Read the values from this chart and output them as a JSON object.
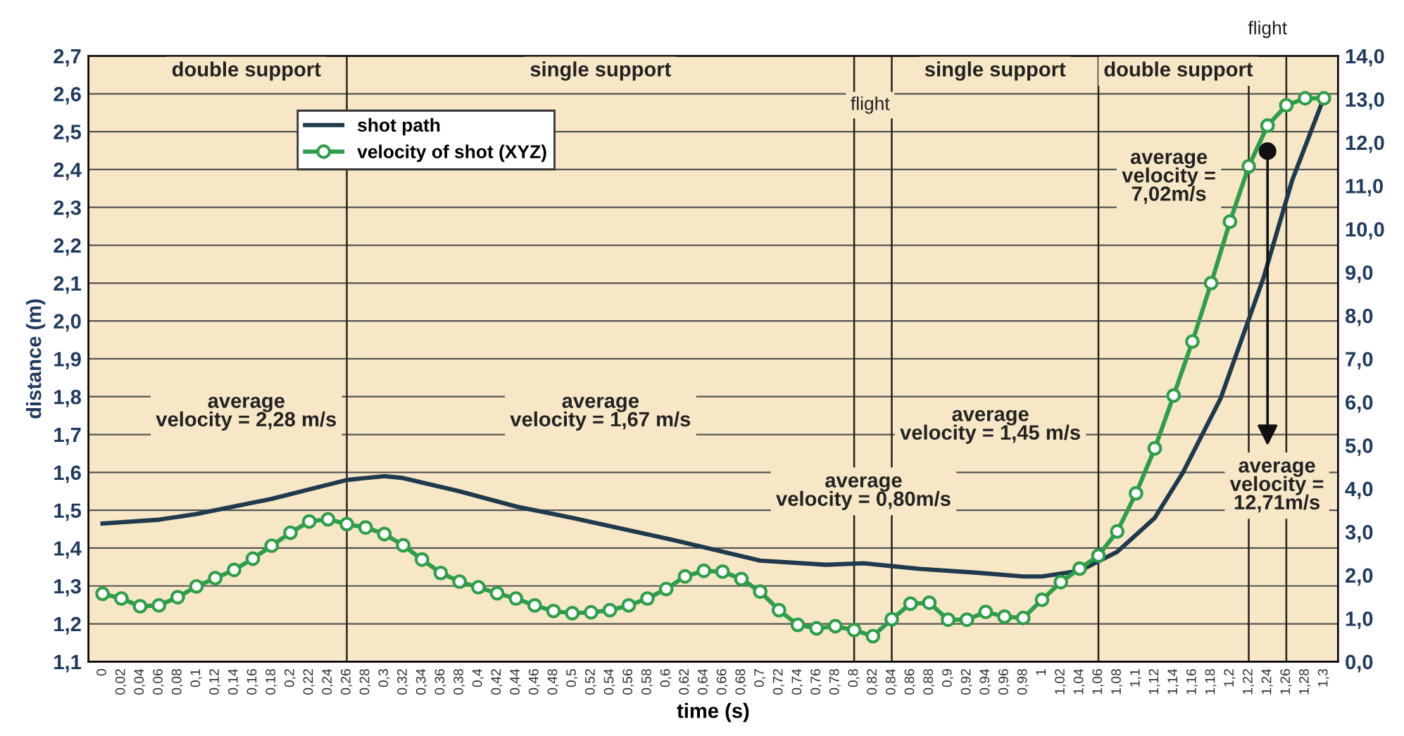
{
  "chart_data": {
    "type": "line",
    "xlabel": "time (s)",
    "ylabel": "distance (m)",
    "xlim": [
      -0.015,
      1.315
    ],
    "ylim": [
      1.1,
      2.7
    ],
    "y2lim": [
      0.0,
      14.0
    ],
    "xticks": [
      {
        "value": 0,
        "label": "0"
      },
      {
        "value": 0.02,
        "label": "0,02"
      },
      {
        "value": 0.04,
        "label": "0,04"
      },
      {
        "value": 0.06,
        "label": "0,06"
      },
      {
        "value": 0.08,
        "label": "0,08"
      },
      {
        "value": 0.1,
        "label": "0,1"
      },
      {
        "value": 0.12,
        "label": "0,12"
      },
      {
        "value": 0.14,
        "label": "0,14"
      },
      {
        "value": 0.16,
        "label": "0,16"
      },
      {
        "value": 0.18,
        "label": "0,18"
      },
      {
        "value": 0.2,
        "label": "0,2"
      },
      {
        "value": 0.22,
        "label": "0,22"
      },
      {
        "value": 0.24,
        "label": "0,24"
      },
      {
        "value": 0.26,
        "label": "0,26"
      },
      {
        "value": 0.28,
        "label": "0,28"
      },
      {
        "value": 0.3,
        "label": "0,3"
      },
      {
        "value": 0.32,
        "label": "0,32"
      },
      {
        "value": 0.34,
        "label": "0,34"
      },
      {
        "value": 0.36,
        "label": "0,36"
      },
      {
        "value": 0.38,
        "label": "0,38"
      },
      {
        "value": 0.4,
        "label": "0,4"
      },
      {
        "value": 0.42,
        "label": "0,42"
      },
      {
        "value": 0.44,
        "label": "0,44"
      },
      {
        "value": 0.46,
        "label": "0,46"
      },
      {
        "value": 0.48,
        "label": "0,48"
      },
      {
        "value": 0.5,
        "label": "0,5"
      },
      {
        "value": 0.52,
        "label": "0,52"
      },
      {
        "value": 0.54,
        "label": "0,54"
      },
      {
        "value": 0.56,
        "label": "0,56"
      },
      {
        "value": 0.58,
        "label": "0,58"
      },
      {
        "value": 0.6,
        "label": "0,6"
      },
      {
        "value": 0.62,
        "label": "0,62"
      },
      {
        "value": 0.64,
        "label": "0,64"
      },
      {
        "value": 0.66,
        "label": "0,66"
      },
      {
        "value": 0.68,
        "label": "0,68"
      },
      {
        "value": 0.7,
        "label": "0,7"
      },
      {
        "value": 0.72,
        "label": "0,72"
      },
      {
        "value": 0.74,
        "label": "0,74"
      },
      {
        "value": 0.76,
        "label": "0,76"
      },
      {
        "value": 0.78,
        "label": "0,78"
      },
      {
        "value": 0.8,
        "label": "0,8"
      },
      {
        "value": 0.82,
        "label": "0,82"
      },
      {
        "value": 0.84,
        "label": "0,84"
      },
      {
        "value": 0.86,
        "label": "0,86"
      },
      {
        "value": 0.88,
        "label": "0,88"
      },
      {
        "value": 0.9,
        "label": "0,9"
      },
      {
        "value": 0.92,
        "label": "0,92"
      },
      {
        "value": 0.94,
        "label": "0,94"
      },
      {
        "value": 0.96,
        "label": "0,96"
      },
      {
        "value": 0.98,
        "label": "0,98"
      },
      {
        "value": 1,
        "label": "1"
      },
      {
        "value": 1.02,
        "label": "1,02"
      },
      {
        "value": 1.04,
        "label": "1,04"
      },
      {
        "value": 1.06,
        "label": "1,06"
      },
      {
        "value": 1.08,
        "label": "1,08"
      },
      {
        "value": 1.1,
        "label": "1,1"
      },
      {
        "value": 1.12,
        "label": "1,12"
      },
      {
        "value": 1.14,
        "label": "1,14"
      },
      {
        "value": 1.16,
        "label": "1,16"
      },
      {
        "value": 1.18,
        "label": "1,18"
      },
      {
        "value": 1.2,
        "label": "1,2"
      },
      {
        "value": 1.22,
        "label": "1,22"
      },
      {
        "value": 1.24,
        "label": "1,24"
      },
      {
        "value": 1.26,
        "label": "1,26"
      },
      {
        "value": 1.28,
        "label": "1,28"
      },
      {
        "value": 1.3,
        "label": "1,3"
      }
    ],
    "yticks": [
      {
        "value": 1.1,
        "label": "1,1"
      },
      {
        "value": 1.2,
        "label": "1,2"
      },
      {
        "value": 1.3,
        "label": "1,3"
      },
      {
        "value": 1.4,
        "label": "1,4"
      },
      {
        "value": 1.5,
        "label": "1,5"
      },
      {
        "value": 1.6,
        "label": "1,6"
      },
      {
        "value": 1.7,
        "label": "1,7"
      },
      {
        "value": 1.8,
        "label": "1,8"
      },
      {
        "value": 1.9,
        "label": "1,9"
      },
      {
        "value": 2.0,
        "label": "2,0"
      },
      {
        "value": 2.1,
        "label": "2,1"
      },
      {
        "value": 2.2,
        "label": "2,2"
      },
      {
        "value": 2.3,
        "label": "2,3"
      },
      {
        "value": 2.4,
        "label": "2,4"
      },
      {
        "value": 2.5,
        "label": "2,5"
      },
      {
        "value": 2.6,
        "label": "2,6"
      },
      {
        "value": 2.7,
        "label": "2,7"
      }
    ],
    "y2ticks": [
      {
        "value": 0,
        "label": "0,0"
      },
      {
        "value": 1,
        "label": "1,0"
      },
      {
        "value": 2,
        "label": "2,0"
      },
      {
        "value": 3,
        "label": "3,0"
      },
      {
        "value": 4,
        "label": "4,0"
      },
      {
        "value": 5,
        "label": "5,0"
      },
      {
        "value": 6,
        "label": "6,0"
      },
      {
        "value": 7,
        "label": "7,0"
      },
      {
        "value": 8,
        "label": "8,0"
      },
      {
        "value": 9,
        "label": "9,0"
      },
      {
        "value": 10,
        "label": "10,0"
      },
      {
        "value": 11,
        "label": "11,0"
      },
      {
        "value": 12,
        "label": "12,0"
      },
      {
        "value": 13,
        "label": "13,0"
      },
      {
        "value": 14,
        "label": "14,0"
      }
    ],
    "grid": "y",
    "legend": "top left",
    "series": [
      {
        "name": "shot path",
        "color": "#1f3a4d",
        "marker": "none",
        "x": [
          0,
          0.06,
          0.1,
          0.18,
          0.26,
          0.3,
          0.32,
          0.38,
          0.44,
          0.5,
          0.61,
          0.7,
          0.77,
          0.81,
          0.87,
          0.93,
          0.98,
          1.0,
          1.04,
          1.08,
          1.12,
          1.15,
          1.19,
          1.236,
          1.266,
          1.3
        ],
        "values": [
          1.465,
          1.475,
          1.49,
          1.53,
          1.58,
          1.59,
          1.585,
          1.55,
          1.51,
          1.48,
          1.42,
          1.367,
          1.356,
          1.36,
          1.345,
          1.335,
          1.325,
          1.325,
          1.34,
          1.39,
          1.48,
          1.6,
          1.795,
          2.116,
          2.37,
          2.59
        ]
      },
      {
        "name": "velocity of shot (XYZ)",
        "color": "#2e9e4a",
        "marker": "circle",
        "axis": "y2",
        "x": [
          0,
          0.02,
          0.04,
          0.06,
          0.08,
          0.1,
          0.12,
          0.14,
          0.16,
          0.18,
          0.2,
          0.22,
          0.24,
          0.26,
          0.28,
          0.3,
          0.32,
          0.34,
          0.36,
          0.38,
          0.4,
          0.42,
          0.44,
          0.46,
          0.48,
          0.5,
          0.52,
          0.54,
          0.56,
          0.58,
          0.6,
          0.62,
          0.64,
          0.66,
          0.68,
          0.7,
          0.72,
          0.74,
          0.76,
          0.78,
          0.8,
          0.82,
          0.84,
          0.86,
          0.88,
          0.9,
          0.92,
          0.94,
          0.96,
          0.98,
          1.0,
          1.02,
          1.04,
          1.06,
          1.08,
          1.1,
          1.12,
          1.14,
          1.16,
          1.18,
          1.2,
          1.22,
          1.24,
          1.26,
          1.28,
          1.3
        ],
        "values": [
          1.57,
          1.46,
          1.28,
          1.3,
          1.49,
          1.74,
          1.93,
          2.12,
          2.38,
          2.68,
          2.98,
          3.24,
          3.29,
          3.18,
          3.1,
          2.95,
          2.69,
          2.36,
          2.05,
          1.85,
          1.72,
          1.58,
          1.46,
          1.3,
          1.17,
          1.12,
          1.14,
          1.19,
          1.3,
          1.46,
          1.68,
          1.97,
          2.1,
          2.08,
          1.91,
          1.62,
          1.19,
          0.85,
          0.77,
          0.82,
          0.73,
          0.59,
          0.98,
          1.34,
          1.36,
          0.97,
          0.97,
          1.15,
          1.04,
          1.01,
          1.43,
          1.84,
          2.15,
          2.45,
          3.01,
          3.89,
          4.93,
          6.15,
          7.4,
          8.75,
          10.17,
          11.45,
          12.39,
          12.86,
          13.02,
          13.02
        ]
      }
    ],
    "ref_lines": [
      {
        "axis": "x",
        "value": 0.26,
        "color": "#222222"
      },
      {
        "axis": "x",
        "value": 0.8,
        "color": "#222222"
      },
      {
        "axis": "x",
        "value": 0.84,
        "color": "#222222"
      },
      {
        "axis": "x",
        "value": 1.06,
        "color": "#222222"
      },
      {
        "axis": "x",
        "value": 1.22,
        "color": "#222222"
      },
      {
        "axis": "x",
        "value": 1.26,
        "color": "#222222"
      }
    ],
    "annotations": [
      "double support",
      "single support",
      "single support",
      "double support",
      "flight",
      "flight",
      "average\nvelocity = 2,28 m/s",
      "average\nvelocity = 1,67 m/s",
      "average\nvelocity = 0,80m/s",
      "average\nvelocity = 1,45 m/s",
      "average\nvelocity =\n7,02m/s",
      "average\nvelocity =\n12,71m/s"
    ]
  }
}
